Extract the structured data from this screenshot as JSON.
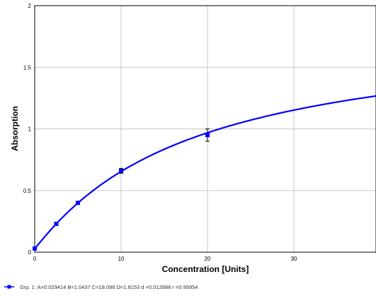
{
  "chart_data": {
    "type": "scatter",
    "xlabel": "Concentration [Units]",
    "ylabel": "Absorption",
    "xlim": [
      0,
      39.5
    ],
    "ylim": [
      0,
      2
    ],
    "x_ticks": [
      0,
      10,
      20,
      30
    ],
    "y_ticks": [
      0,
      0.5,
      1,
      1.5,
      2
    ],
    "x_tick_labels": [
      "0",
      "10",
      "20",
      "30"
    ],
    "y_tick_labels": [
      "0",
      "0.5",
      "1",
      "1.5",
      "2"
    ],
    "grid": true,
    "series": [
      {
        "color": "#0000ff",
        "points": [
          {
            "x": 0,
            "y": 0.03,
            "err": 0.005
          },
          {
            "x": 2.5,
            "y": 0.23,
            "err": 0.005
          },
          {
            "x": 5,
            "y": 0.4,
            "err": 0.005
          },
          {
            "x": 10,
            "y": 0.66,
            "err": 0.02
          },
          {
            "x": 20,
            "y": 0.95,
            "err": 0.05
          }
        ],
        "fit": {
          "model": "4PL",
          "A": 0.029414,
          "B": 1.0437,
          "C": 18.096,
          "D": 1.8153
        }
      }
    ],
    "legend": {
      "placement": "bottom-left",
      "text": "Grp. 1: A=0.029414 B=1.0437 C=18.096 D=1.8153  d =0.012888  r =0.99954"
    }
  }
}
